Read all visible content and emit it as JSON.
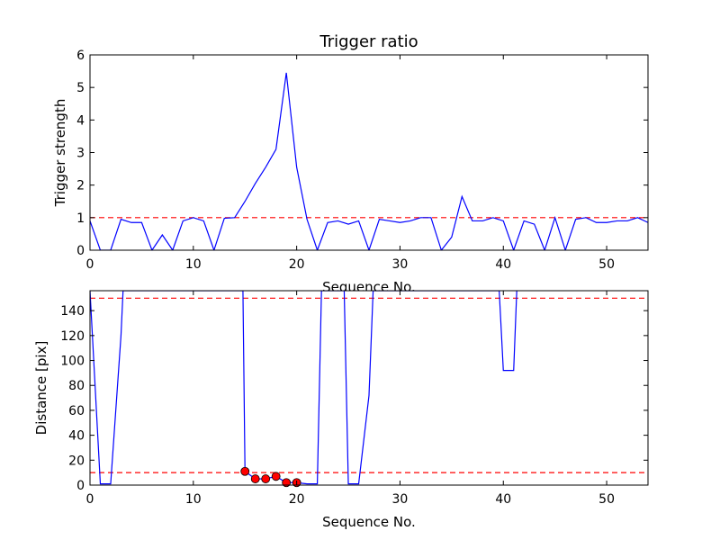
{
  "chart_data": [
    {
      "type": "line",
      "title": "Trigger ratio",
      "xlabel": "Sequence No.",
      "ylabel": "Trigger strength",
      "xlim": [
        0,
        54
      ],
      "ylim": [
        0,
        6
      ],
      "xticks": [
        0,
        10,
        20,
        30,
        40,
        50
      ],
      "yticks": [
        0,
        1,
        2,
        3,
        4,
        5,
        6
      ],
      "grid": false,
      "series": [
        {
          "color": "#0000ff",
          "x": [
            0,
            1,
            2,
            3,
            4,
            5,
            6,
            7,
            8,
            9,
            10,
            11,
            12,
            13,
            14,
            15,
            16,
            17,
            18,
            19,
            20,
            21,
            22,
            23,
            24,
            25,
            26,
            27,
            28,
            29,
            30,
            31,
            32,
            33,
            34,
            35,
            36,
            37,
            38,
            39,
            40,
            41,
            42,
            43,
            44,
            45,
            46,
            47,
            48,
            49,
            50,
            51,
            52,
            53,
            54
          ],
          "y": [
            0.9,
            0,
            0,
            0.95,
            0.85,
            0.85,
            0,
            0.47,
            0,
            0.9,
            1.0,
            0.9,
            0,
            0.98,
            1.0,
            1.5,
            2.05,
            2.55,
            3.1,
            5.45,
            2.55,
            0.95,
            0,
            0.85,
            0.9,
            0.8,
            0.9,
            0,
            0.95,
            0.9,
            0.85,
            0.9,
            1.0,
            1.0,
            0,
            0.4,
            1.65,
            0.9,
            0.9,
            1.0,
            0.9,
            0,
            0.9,
            0.8,
            0,
            1.0,
            0,
            0.95,
            1.0,
            0.85,
            0.85,
            0.9,
            0.9,
            1.0,
            0.85
          ]
        }
      ],
      "hlines": [
        {
          "y": 1,
          "color": "#ff0000",
          "style": "dashed"
        }
      ]
    },
    {
      "type": "line",
      "title": "",
      "xlabel": "Sequence No.",
      "ylabel": "Distance [pix]",
      "xlim": [
        0,
        54
      ],
      "ylim": [
        0,
        156
      ],
      "xticks": [
        0,
        10,
        20,
        30,
        40,
        50
      ],
      "yticks": [
        0,
        20,
        40,
        60,
        80,
        100,
        120,
        140
      ],
      "grid": false,
      "series": [
        {
          "color": "#0000ff",
          "x": [
            0,
            1,
            2,
            3,
            3.2,
            14.8,
            15,
            16,
            17,
            18,
            19,
            20,
            21,
            22,
            22.4,
            24.6,
            25,
            26,
            27,
            27.4,
            39.6,
            40,
            41,
            41.3
          ],
          "y": [
            156,
            1,
            1,
            120,
            156,
            156,
            11,
            5,
            5,
            7,
            2,
            2,
            1,
            1,
            156,
            156,
            1,
            1,
            72,
            156,
            156,
            92,
            92,
            156
          ]
        }
      ],
      "markers": {
        "color": "#ff0000",
        "x": [
          15,
          16,
          17,
          18,
          19,
          20
        ],
        "y": [
          11,
          5,
          5,
          7,
          2,
          2
        ]
      },
      "hlines": [
        {
          "y": 150,
          "color": "#ff0000",
          "style": "dashed"
        },
        {
          "y": 10,
          "color": "#ff0000",
          "style": "dashed"
        }
      ]
    }
  ]
}
